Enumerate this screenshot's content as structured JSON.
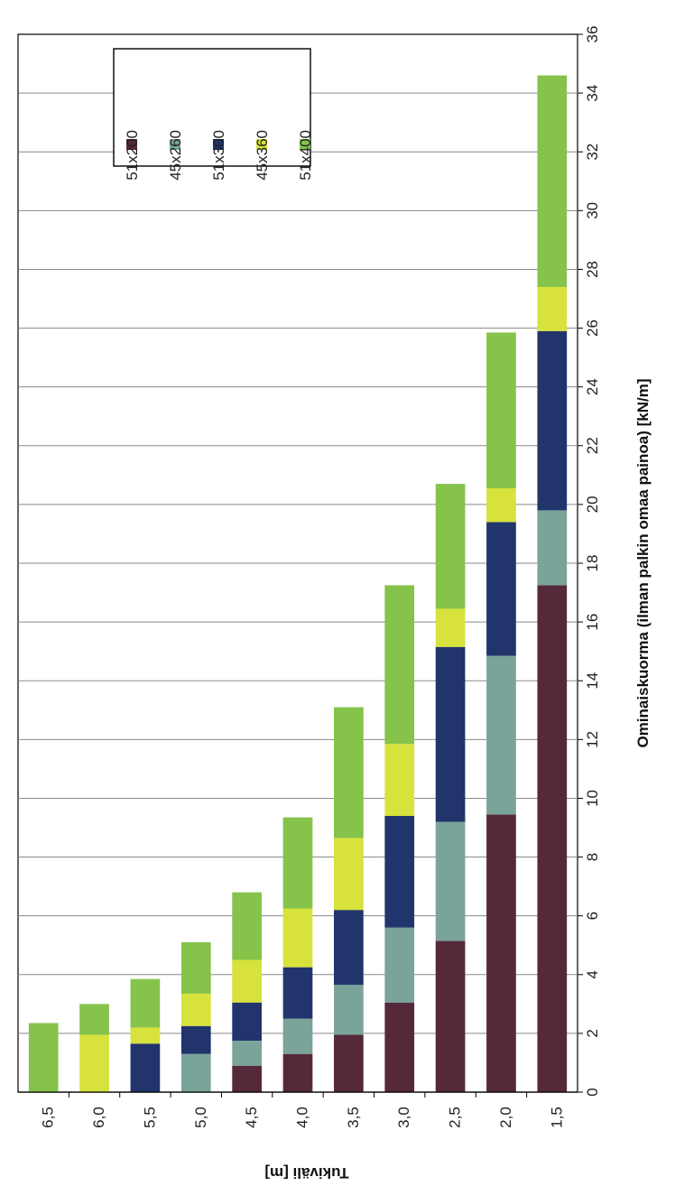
{
  "chart_data": {
    "type": "bar",
    "stacked": true,
    "orientation": "horizontal-bars-rotated-page",
    "categories": [
      "6,5",
      "6,0",
      "5,5",
      "5,0",
      "4,5",
      "4,0",
      "3,5",
      "3,0",
      "2,5",
      "2,0",
      "1,5"
    ],
    "series": [
      {
        "name": "51x200",
        "color": "#55293a",
        "values": [
          0,
          0,
          0,
          0,
          0.9,
          1.3,
          1.95,
          3.05,
          5.15,
          9.45,
          17.25
        ]
      },
      {
        "name": "45x260",
        "color": "#7aa39a",
        "values": [
          0,
          0,
          0,
          1.3,
          0.85,
          1.2,
          1.7,
          2.55,
          4.05,
          5.4,
          2.55
        ]
      },
      {
        "name": "51x300",
        "color": "#21346b",
        "values": [
          0,
          0,
          1.65,
          0.95,
          1.3,
          1.75,
          2.55,
          3.8,
          5.95,
          4.55,
          6.1
        ]
      },
      {
        "name": "45x360",
        "color": "#d7e23c",
        "values": [
          0,
          1.95,
          0.55,
          1.1,
          1.45,
          2.0,
          2.45,
          2.45,
          1.3,
          1.15,
          1.5
        ]
      },
      {
        "name": "51x400",
        "color": "#85c34a",
        "values": [
          2.35,
          1.05,
          1.65,
          1.75,
          2.3,
          3.1,
          4.45,
          5.4,
          4.25,
          5.3,
          7.2
        ]
      }
    ],
    "xlabel": "Tukiväli [m]",
    "ylabel": "Ominaiskuorma (ilman palkin omaa painoa) [kN/m]",
    "ylim": [
      0,
      36
    ],
    "yticks": [
      0,
      2,
      4,
      6,
      8,
      10,
      12,
      14,
      16,
      18,
      20,
      22,
      24,
      26,
      28,
      30,
      32,
      34,
      36
    ],
    "grid": true,
    "legend_position": "top-left"
  }
}
